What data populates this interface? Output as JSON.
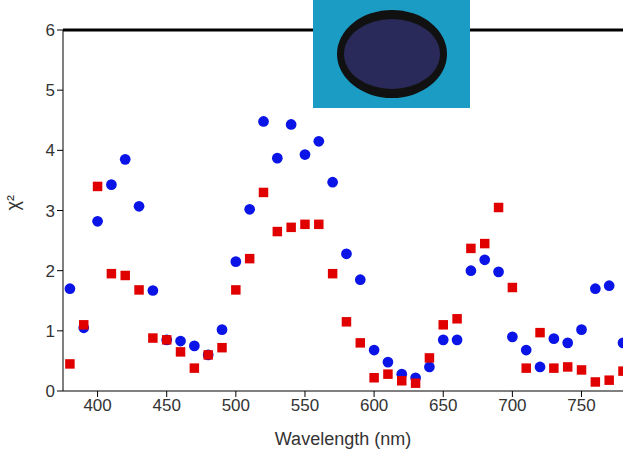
{
  "chart_data": {
    "type": "scatter",
    "xlabel": "Wavelength (nm)",
    "ylabel": "χ²",
    "x": [
      380,
      390,
      400,
      410,
      420,
      430,
      440,
      450,
      460,
      470,
      480,
      490,
      500,
      510,
      520,
      530,
      540,
      550,
      560,
      570,
      580,
      590,
      600,
      610,
      620,
      630,
      640,
      650,
      660,
      670,
      680,
      690,
      700,
      710,
      720,
      730,
      740,
      750,
      760,
      770,
      780
    ],
    "series": [
      {
        "color": "#0a14e6",
        "marker": "circle",
        "values": [
          1.7,
          1.05,
          2.82,
          3.43,
          3.85,
          3.07,
          1.67,
          0.85,
          0.83,
          0.75,
          0.6,
          1.02,
          2.15,
          3.02,
          4.48,
          3.87,
          4.43,
          3.93,
          4.15,
          3.47,
          2.28,
          1.85,
          0.68,
          0.48,
          0.28,
          0.22,
          0.4,
          0.85,
          0.85,
          2.0,
          2.18,
          1.98,
          0.9,
          0.68,
          0.4,
          0.87,
          0.8,
          1.02,
          1.7,
          1.75,
          0.8
        ]
      },
      {
        "color": "#e00000",
        "marker": "square",
        "values": [
          0.45,
          1.1,
          3.4,
          1.95,
          1.92,
          1.68,
          0.88,
          0.85,
          0.65,
          0.38,
          0.6,
          0.72,
          1.68,
          2.2,
          3.3,
          2.65,
          2.72,
          2.77,
          2.77,
          1.95,
          1.15,
          0.8,
          0.22,
          0.28,
          0.17,
          0.13,
          0.55,
          1.1,
          1.2,
          2.37,
          2.45,
          3.05,
          1.72,
          0.38,
          0.97,
          0.38,
          0.4,
          0.35,
          0.15,
          0.18,
          0.33
        ]
      }
    ],
    "xlim": [
      375,
      780
    ],
    "xticks": [
      400,
      450,
      500,
      550,
      600,
      650,
      700,
      750
    ],
    "ylim": [
      0,
      6
    ],
    "yticks": [
      0,
      1,
      2,
      3,
      4,
      5,
      6
    ],
    "grid": false
  }
}
